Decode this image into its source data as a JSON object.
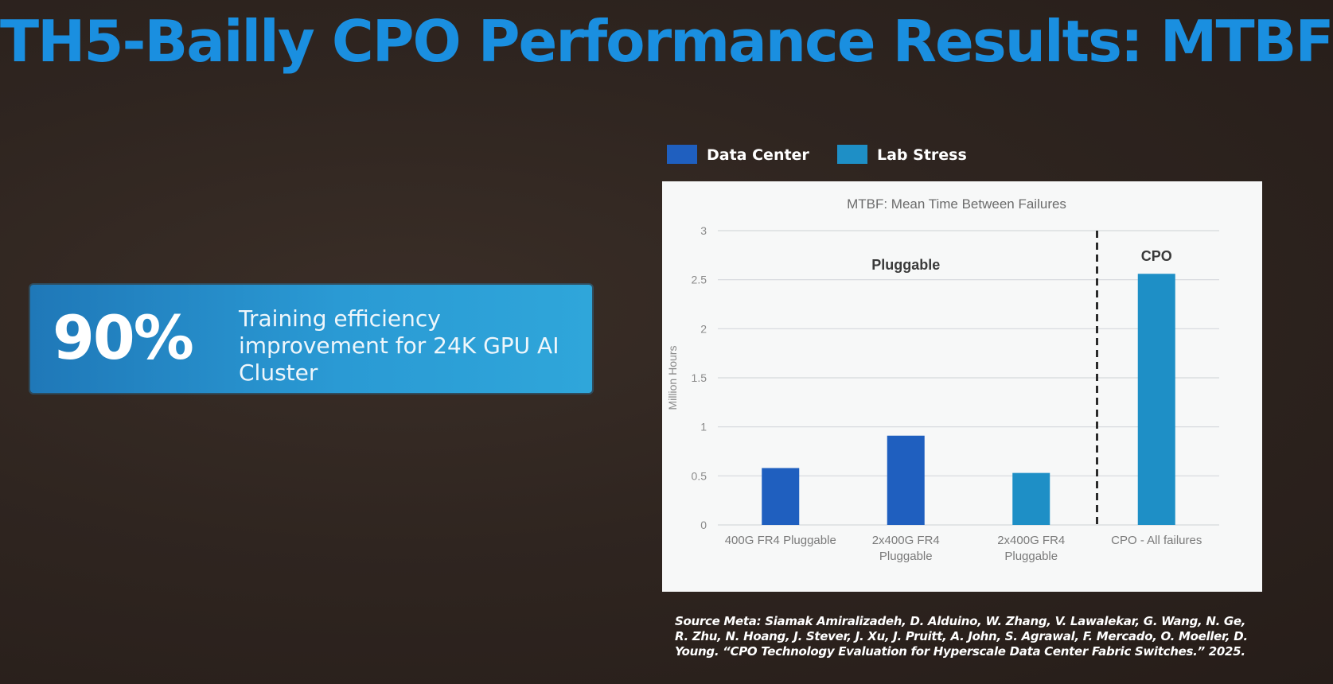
{
  "slide": {
    "title": "TH5-Bailly CPO Performance Results: MTBF"
  },
  "stat": {
    "value": "90%",
    "text": "Training efficiency improvement for 24K GPU AI Cluster"
  },
  "colors": {
    "data_center": "#1f5fbf",
    "lab_stress": "#1e8fc6",
    "title": "#1a8fe0"
  },
  "source": {
    "label": "Source Meta:",
    "authors": "Siamak Amiralizadeh, D. Alduino, W. Zhang, V. Lawalekar, G. Wang, N. Ge, R. Zhu, N. Hoang, J. Stever, J. Xu, J. Pruitt, A. John, S. Agrawal, F. Mercado, O. Moeller, D. Young.",
    "paper": "“CPO Technology Evaluation for Hyperscale Data Center Fabric Switches.” 2025."
  },
  "chart_data": {
    "type": "bar",
    "title": "MTBF: Mean Time Between Failures",
    "ylabel": "Million Hours",
    "ylim": [
      0,
      3
    ],
    "yticks": [
      0,
      0.5,
      1,
      1.5,
      2,
      2.5,
      3
    ],
    "ytick_labels": [
      "0",
      "0.5",
      "1",
      "1.5",
      "2",
      "2.5",
      "3"
    ],
    "grid": true,
    "legend_position": "top-left (above chart)",
    "legend": [
      {
        "name": "Data Center",
        "color": "#1f5fbf"
      },
      {
        "name": "Lab Stress",
        "color": "#1e8fc6"
      }
    ],
    "categories": [
      "400G FR4 Pluggable",
      "2x400G FR4 Pluggable",
      "2x400G FR4 Pluggable",
      "CPO - All failures"
    ],
    "bars": [
      {
        "category_index": 0,
        "series": "Data Center",
        "value": 0.58
      },
      {
        "category_index": 1,
        "series": "Data Center",
        "value": 0.91
      },
      {
        "category_index": 2,
        "series": "Lab Stress",
        "value": 0.53
      },
      {
        "category_index": 3,
        "series": "Lab Stress",
        "value": 2.56
      }
    ],
    "groups": [
      {
        "label": "Pluggable",
        "from_index": 0,
        "to_index": 2
      },
      {
        "label": "CPO",
        "from_index": 3,
        "to_index": 3
      }
    ],
    "divider_between": [
      2,
      3
    ]
  }
}
